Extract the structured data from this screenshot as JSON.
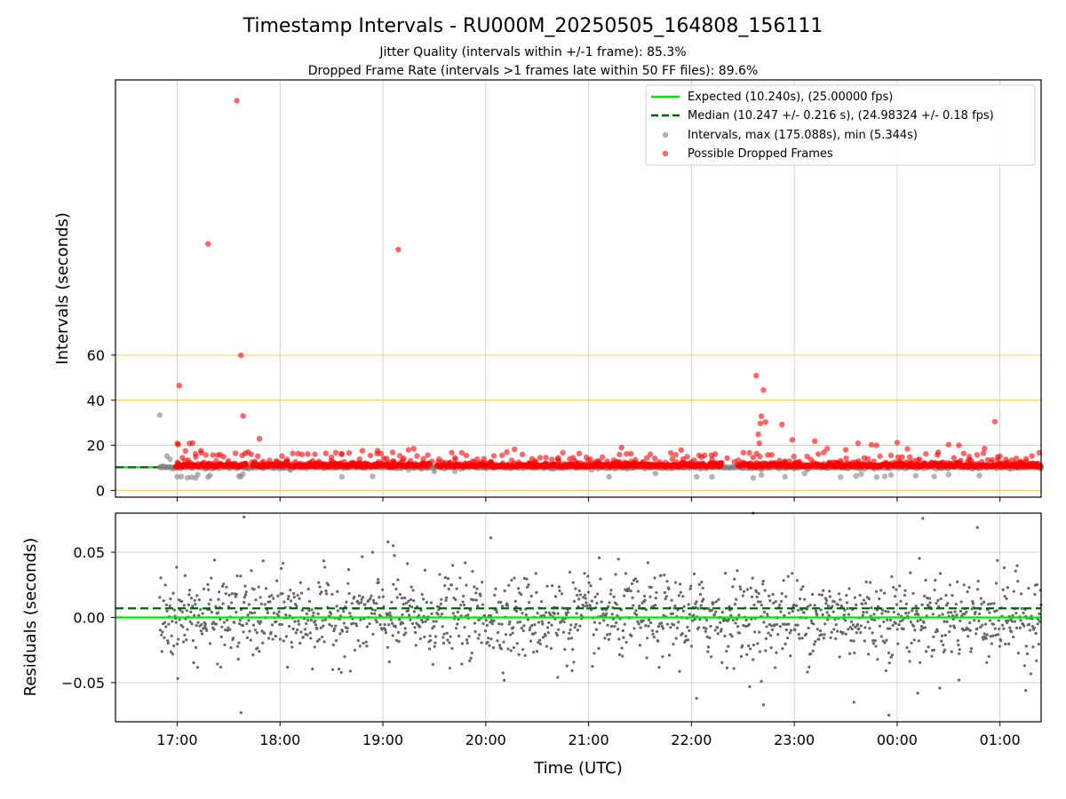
{
  "chart_data": {
    "type": "scatter",
    "title": "Timestamp Intervals - RU000M_20250505_164808_156111",
    "subtitle_lines": [
      "Jitter Quality (intervals within +/-1 frame): 85.3%",
      "Dropped Frame Rate (intervals >1 frames late within 50 FF files): 89.6%"
    ],
    "xlabel": "Time (UTC)",
    "x_ticks": [
      "17:00",
      "18:00",
      "19:00",
      "20:00",
      "21:00",
      "22:00",
      "23:00",
      "00:00",
      "01:00"
    ],
    "x_tick_hours": [
      17,
      18,
      19,
      20,
      21,
      22,
      23,
      24,
      25
    ],
    "x_range_hours": [
      16.4,
      25.4
    ],
    "grid": true,
    "top_panel": {
      "ylabel": "Intervals (seconds)",
      "ylim": [
        -3,
        182
      ],
      "y_ticks": [
        0,
        20,
        40,
        60
      ],
      "horizontal_reference_lines": [
        0,
        20,
        40,
        60
      ],
      "reference_line_color": "#ffd060",
      "expected_interval": 10.24,
      "median_interval": 10.247,
      "legend": {
        "placement": "upper-right",
        "entries": [
          {
            "label": "Expected (10.240s), (25.00000 fps)",
            "style": "solid-line",
            "color": "#00e600"
          },
          {
            "label": "Median (10.247 +/- 0.216 s), (24.98324 +/- 0.18 fps)",
            "style": "dashed-line",
            "color": "#006400"
          },
          {
            "label": "Intervals, max (175.088s), min (5.344s)",
            "style": "marker",
            "color": "#808080"
          },
          {
            "label": "Possible Dropped Frames",
            "style": "marker",
            "color": "#ff0000"
          }
        ]
      },
      "intervals_series": {
        "color": "#808080",
        "points": [
          [
            16.83,
            33.4
          ],
          [
            16.86,
            10.6
          ],
          [
            16.9,
            15.2
          ],
          [
            16.93,
            13.8
          ],
          [
            16.97,
            10.2
          ],
          [
            17.0,
            6.0
          ],
          [
            17.04,
            6.1
          ],
          [
            17.1,
            5.6
          ],
          [
            17.14,
            5.9
          ],
          [
            17.18,
            5.5
          ],
          [
            17.2,
            7.0
          ],
          [
            17.3,
            5.9
          ],
          [
            17.32,
            6.7
          ],
          [
            17.6,
            6.3
          ],
          [
            17.62,
            6.1
          ],
          [
            17.64,
            7.3
          ],
          [
            18.1,
            9.0
          ],
          [
            18.6,
            6.0
          ],
          [
            18.9,
            6.2
          ],
          [
            19.25,
            9.2
          ],
          [
            19.5,
            8.4
          ],
          [
            19.7,
            8.5
          ],
          [
            20.15,
            11.0
          ],
          [
            21.2,
            6.0
          ],
          [
            21.65,
            7.5
          ],
          [
            22.05,
            6.0
          ],
          [
            22.2,
            6.0
          ],
          [
            22.6,
            5.5
          ],
          [
            22.68,
            6.8
          ],
          [
            22.91,
            6.0
          ],
          [
            23.1,
            7.5
          ],
          [
            23.45,
            5.9
          ],
          [
            23.6,
            6.4
          ],
          [
            23.65,
            7.2
          ],
          [
            23.8,
            5.9
          ],
          [
            23.88,
            6.2
          ],
          [
            23.94,
            6.8
          ],
          [
            24.18,
            6.5
          ],
          [
            24.36,
            6.2
          ],
          [
            24.5,
            7.0
          ],
          [
            24.8,
            6.6
          ],
          [
            25.1,
            9.5
          ]
        ]
      },
      "dropped_frames_series": {
        "color": "#ff0000",
        "points": [
          [
            17.0,
            20.8
          ],
          [
            17.01,
            20.4
          ],
          [
            17.02,
            46.5
          ],
          [
            17.05,
            14.5
          ],
          [
            17.08,
            17.5
          ],
          [
            17.12,
            20.8
          ],
          [
            17.15,
            21.0
          ],
          [
            17.18,
            14.8
          ],
          [
            17.23,
            17.6
          ],
          [
            17.3,
            109.3
          ],
          [
            17.38,
            13.0
          ],
          [
            17.42,
            15.8
          ],
          [
            17.58,
            172.8
          ],
          [
            17.62,
            59.9
          ],
          [
            17.64,
            33.0
          ],
          [
            17.66,
            16.4
          ],
          [
            17.8,
            22.9
          ],
          [
            18.02,
            15.2
          ],
          [
            18.3,
            12.5
          ],
          [
            18.5,
            14.7
          ],
          [
            18.6,
            16.0
          ],
          [
            18.8,
            17.6
          ],
          [
            18.95,
            17.6
          ],
          [
            19.1,
            13.0
          ],
          [
            19.15,
            106.8
          ],
          [
            19.25,
            18.0
          ],
          [
            19.3,
            18.5
          ],
          [
            19.7,
            14.5
          ],
          [
            20.05,
            12.6
          ],
          [
            20.28,
            18.2
          ],
          [
            20.45,
            14.0
          ],
          [
            20.7,
            13.8
          ],
          [
            20.85,
            14.5
          ],
          [
            21.1,
            13.0
          ],
          [
            21.3,
            15.9
          ],
          [
            21.32,
            19.0
          ],
          [
            21.6,
            16.0
          ],
          [
            21.8,
            16.6
          ],
          [
            21.9,
            17.9
          ],
          [
            22.1,
            14.8
          ],
          [
            22.2,
            13.8
          ],
          [
            22.6,
            14.6
          ],
          [
            22.63,
            50.9
          ],
          [
            22.65,
            24.9
          ],
          [
            22.66,
            20.9
          ],
          [
            22.67,
            29.7
          ],
          [
            22.68,
            32.9
          ],
          [
            22.7,
            44.5
          ],
          [
            22.72,
            30.3
          ],
          [
            22.88,
            29.2
          ],
          [
            22.98,
            22.4
          ],
          [
            23.2,
            21.8
          ],
          [
            23.32,
            18.5
          ],
          [
            23.5,
            18.0
          ],
          [
            23.62,
            20.9
          ],
          [
            23.75,
            20.2
          ],
          [
            23.8,
            20.0
          ],
          [
            24.0,
            21.2
          ],
          [
            24.1,
            18.4
          ],
          [
            24.2,
            13.5
          ],
          [
            24.4,
            16.9
          ],
          [
            24.5,
            20.3
          ],
          [
            24.6,
            20.0
          ],
          [
            24.7,
            15.0
          ],
          [
            24.85,
            18.6
          ],
          [
            24.95,
            30.5
          ],
          [
            25.0,
            15.2
          ],
          [
            25.2,
            12.4
          ],
          [
            25.35,
            11.8
          ]
        ]
      }
    },
    "bottom_panel": {
      "ylabel": "Residuals (seconds)",
      "ylim": [
        -0.08,
        0.08
      ],
      "y_ticks": [
        0.05,
        0.0,
        -0.05
      ],
      "y_tick_labels": [
        "0.05",
        "0.00",
        "−0.05"
      ],
      "expected_residual": 0.0,
      "median_residual": 0.007,
      "residual_point_color": "#666666",
      "residual_spread_std": 0.016,
      "residual_time_start": 16.83,
      "outliers": [
        [
          17.65,
          0.077
        ],
        [
          17.62,
          -0.073
        ],
        [
          18.1,
          0.021
        ],
        [
          18.9,
          0.05
        ],
        [
          19.05,
          0.058
        ],
        [
          19.1,
          0.055
        ],
        [
          20.05,
          0.061
        ],
        [
          20.7,
          -0.046
        ],
        [
          22.05,
          -0.062
        ],
        [
          22.6,
          0.08
        ],
        [
          22.7,
          -0.067
        ],
        [
          22.68,
          -0.049
        ],
        [
          24.25,
          0.076
        ],
        [
          24.6,
          -0.048
        ],
        [
          24.78,
          0.069
        ],
        [
          23.92,
          -0.075
        ],
        [
          24.2,
          -0.058
        ],
        [
          23.58,
          -0.065
        ],
        [
          25.25,
          -0.056
        ]
      ]
    }
  }
}
